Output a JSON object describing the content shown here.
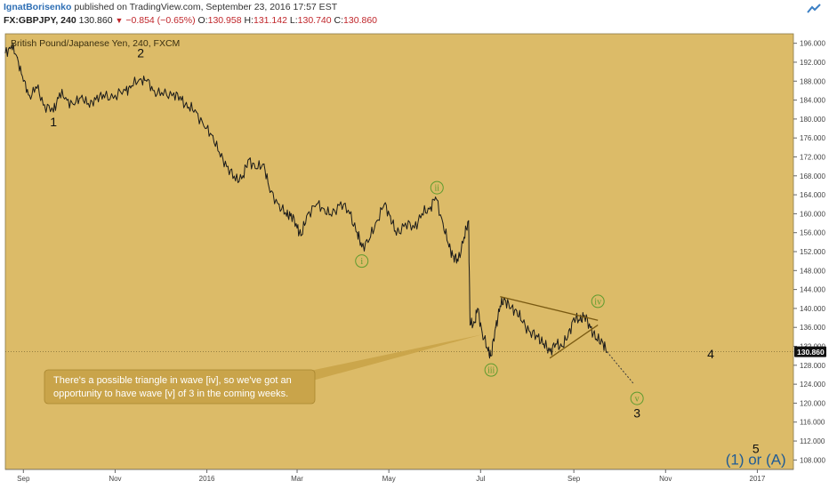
{
  "header": {
    "author": "IgnatBorisenko",
    "published": "published on TradingView.com, September 23, 2016 17:57 EST",
    "symbol": "FX:GBPJPY, 240",
    "last": "130.860",
    "change": "−0.854 (−0.65%)",
    "o_label": "O:",
    "o_value": "130.958",
    "h_label": "H:",
    "h_value": "131.142",
    "l_label": "L:",
    "l_value": "130.740",
    "c_label": "C:",
    "c_value": "130.860"
  },
  "colors": {
    "background": "#dcbb68",
    "price_line": "#1a1a1a",
    "wave_circle": "#5e9b2e",
    "wave_primary": "#111111",
    "wave_big": "#1f5b96",
    "triangle": "#7a5a12",
    "callout_bg": "#c9a44a",
    "callout_text": "#ffffff",
    "last_price_bg": "#111111"
  },
  "chart_data": {
    "type": "line",
    "title": "British Pound/Japanese Yen, 240, FXCM",
    "xlabel": "",
    "ylabel": "",
    "ylim": [
      106,
      198
    ],
    "x_range": [
      "2015-08-20",
      "2017-01-25"
    ],
    "x_ticks": [
      {
        "label": "Sep",
        "date": "2015-09-01"
      },
      {
        "label": "Nov",
        "date": "2015-11-01"
      },
      {
        "label": "2016",
        "date": "2016-01-01"
      },
      {
        "label": "Mar",
        "date": "2016-03-01"
      },
      {
        "label": "May",
        "date": "2016-05-01"
      },
      {
        "label": "Jul",
        "date": "2016-07-01"
      },
      {
        "label": "Sep",
        "date": "2016-09-01"
      },
      {
        "label": "Nov",
        "date": "2016-11-01"
      },
      {
        "label": "2017",
        "date": "2017-01-01"
      }
    ],
    "y_ticks": [
      "108.000",
      "112.000",
      "116.000",
      "120.000",
      "124.000",
      "128.000",
      "132.000",
      "136.000",
      "140.000",
      "144.000",
      "148.000",
      "152.000",
      "156.000",
      "160.000",
      "164.000",
      "168.000",
      "172.000",
      "176.000",
      "180.000",
      "184.000",
      "188.000",
      "192.000",
      "196.000"
    ],
    "last_price": {
      "value": 130.86,
      "label": "130.860"
    },
    "series": [
      {
        "values": [
          {
            "x": "2015-08-20",
            "y": 194.0
          },
          {
            "x": "2015-08-24",
            "y": 195.4
          },
          {
            "x": "2015-08-28",
            "y": 193.0
          },
          {
            "x": "2015-09-01",
            "y": 188.0
          },
          {
            "x": "2015-09-05",
            "y": 185.0
          },
          {
            "x": "2015-09-10",
            "y": 186.5
          },
          {
            "x": "2015-09-15",
            "y": 183.0
          },
          {
            "x": "2015-09-21",
            "y": 181.5
          },
          {
            "x": "2015-09-25",
            "y": 185.5
          },
          {
            "x": "2015-09-30",
            "y": 184.0
          },
          {
            "x": "2015-10-05",
            "y": 183.0
          },
          {
            "x": "2015-10-10",
            "y": 185.0
          },
          {
            "x": "2015-10-15",
            "y": 182.5
          },
          {
            "x": "2015-10-20",
            "y": 185.0
          },
          {
            "x": "2015-10-25",
            "y": 184.5
          },
          {
            "x": "2015-11-01",
            "y": 185.0
          },
          {
            "x": "2015-11-08",
            "y": 186.0
          },
          {
            "x": "2015-11-12",
            "y": 187.0
          },
          {
            "x": "2015-11-18",
            "y": 188.5
          },
          {
            "x": "2015-11-22",
            "y": 188.0
          },
          {
            "x": "2015-11-27",
            "y": 186.0
          },
          {
            "x": "2015-12-03",
            "y": 185.0
          },
          {
            "x": "2015-12-10",
            "y": 185.5
          },
          {
            "x": "2015-12-15",
            "y": 184.0
          },
          {
            "x": "2015-12-20",
            "y": 182.5
          },
          {
            "x": "2015-12-25",
            "y": 181.5
          },
          {
            "x": "2015-12-31",
            "y": 178.0
          },
          {
            "x": "2016-01-05",
            "y": 176.5
          },
          {
            "x": "2016-01-10",
            "y": 172.0
          },
          {
            "x": "2016-01-15",
            "y": 170.0
          },
          {
            "x": "2016-01-20",
            "y": 167.0
          },
          {
            "x": "2016-01-25",
            "y": 168.0
          },
          {
            "x": "2016-01-29",
            "y": 171.5
          },
          {
            "x": "2016-02-03",
            "y": 169.5
          },
          {
            "x": "2016-02-08",
            "y": 170.5
          },
          {
            "x": "2016-02-12",
            "y": 164.5
          },
          {
            "x": "2016-02-18",
            "y": 162.0
          },
          {
            "x": "2016-02-23",
            "y": 159.5
          },
          {
            "x": "2016-02-26",
            "y": 160.0
          },
          {
            "x": "2016-03-01",
            "y": 157.0
          },
          {
            "x": "2016-03-04",
            "y": 155.5
          },
          {
            "x": "2016-03-08",
            "y": 160.0
          },
          {
            "x": "2016-03-14",
            "y": 162.0
          },
          {
            "x": "2016-03-19",
            "y": 161.0
          },
          {
            "x": "2016-03-24",
            "y": 159.5
          },
          {
            "x": "2016-03-30",
            "y": 162.5
          },
          {
            "x": "2016-04-05",
            "y": 160.0
          },
          {
            "x": "2016-04-10",
            "y": 156.0
          },
          {
            "x": "2016-04-13",
            "y": 153.0
          },
          {
            "x": "2016-04-18",
            "y": 154.5
          },
          {
            "x": "2016-04-23",
            "y": 158.5
          },
          {
            "x": "2016-04-28",
            "y": 162.0
          },
          {
            "x": "2016-05-02",
            "y": 159.5
          },
          {
            "x": "2016-05-06",
            "y": 155.5
          },
          {
            "x": "2016-05-12",
            "y": 158.0
          },
          {
            "x": "2016-05-18",
            "y": 157.0
          },
          {
            "x": "2016-05-23",
            "y": 160.0
          },
          {
            "x": "2016-05-28",
            "y": 161.0
          },
          {
            "x": "2016-06-01",
            "y": 163.5
          },
          {
            "x": "2016-06-06",
            "y": 158.0
          },
          {
            "x": "2016-06-10",
            "y": 153.0
          },
          {
            "x": "2016-06-13",
            "y": 151.0
          },
          {
            "x": "2016-06-16",
            "y": 150.0
          },
          {
            "x": "2016-06-20",
            "y": 155.0
          },
          {
            "x": "2016-06-23",
            "y": 158.5
          },
          {
            "x": "2016-06-24",
            "y": 136.5
          },
          {
            "x": "2016-06-27",
            "y": 137.0
          },
          {
            "x": "2016-06-29",
            "y": 140.0
          },
          {
            "x": "2016-07-02",
            "y": 135.0
          },
          {
            "x": "2016-07-06",
            "y": 131.0
          },
          {
            "x": "2016-07-08",
            "y": 130.0
          },
          {
            "x": "2016-07-11",
            "y": 136.0
          },
          {
            "x": "2016-07-14",
            "y": 140.5
          },
          {
            "x": "2016-07-17",
            "y": 142.0
          },
          {
            "x": "2016-07-21",
            "y": 140.0
          },
          {
            "x": "2016-07-25",
            "y": 139.5
          },
          {
            "x": "2016-07-29",
            "y": 137.0
          },
          {
            "x": "2016-08-03",
            "y": 135.0
          },
          {
            "x": "2016-08-08",
            "y": 134.0
          },
          {
            "x": "2016-08-12",
            "y": 132.5
          },
          {
            "x": "2016-08-16",
            "y": 131.0
          },
          {
            "x": "2016-08-20",
            "y": 132.5
          },
          {
            "x": "2016-08-24",
            "y": 132.0
          },
          {
            "x": "2016-08-28",
            "y": 134.0
          },
          {
            "x": "2016-09-01",
            "y": 138.0
          },
          {
            "x": "2016-09-05",
            "y": 137.5
          },
          {
            "x": "2016-09-08",
            "y": 138.5
          },
          {
            "x": "2016-09-12",
            "y": 136.0
          },
          {
            "x": "2016-09-16",
            "y": 133.5
          },
          {
            "x": "2016-09-20",
            "y": 133.0
          },
          {
            "x": "2016-09-23",
            "y": 130.86
          }
        ]
      }
    ],
    "annotations": {
      "wave_labels_primary": [
        {
          "text": "1",
          "x": "2015-09-21",
          "y": 178.5
        },
        {
          "text": "2",
          "x": "2015-11-18",
          "y": 193.0
        },
        {
          "text": "3",
          "x": "2016-10-13",
          "y": 117.0
        },
        {
          "text": "4",
          "x": "2016-12-01",
          "y": 129.5
        },
        {
          "text": "5",
          "x": "2016-12-31",
          "y": 109.5
        }
      ],
      "wave_labels_circled": [
        {
          "text": "i",
          "x": "2016-04-13",
          "y": 150.0
        },
        {
          "text": "ii",
          "x": "2016-06-02",
          "y": 165.5
        },
        {
          "text": "iii",
          "x": "2016-07-08",
          "y": 127.0
        },
        {
          "text": "iv",
          "x": "2016-09-17",
          "y": 141.5
        },
        {
          "text": "v",
          "x": "2016-10-13",
          "y": 121.0
        }
      ],
      "big_label": {
        "text": "(1) or (A)",
        "x": "2016-12-31",
        "y": 107.0
      },
      "triangle": {
        "upper": [
          {
            "x": "2016-07-14",
            "y": 142.5
          },
          {
            "x": "2016-09-17",
            "y": 137.5
          }
        ],
        "lower": [
          {
            "x": "2016-08-16",
            "y": 129.5
          },
          {
            "x": "2016-09-17",
            "y": 136.5
          }
        ]
      },
      "projection": [
        {
          "x": "2016-09-23",
          "y": 130.86
        },
        {
          "x": "2016-10-11",
          "y": 124.0
        }
      ],
      "callout": {
        "text_line1": "There's a possible triangle in wave [iv], so we've got an",
        "text_line2": "opportunity to have wave [v] of 3 in the coming weeks."
      }
    }
  }
}
